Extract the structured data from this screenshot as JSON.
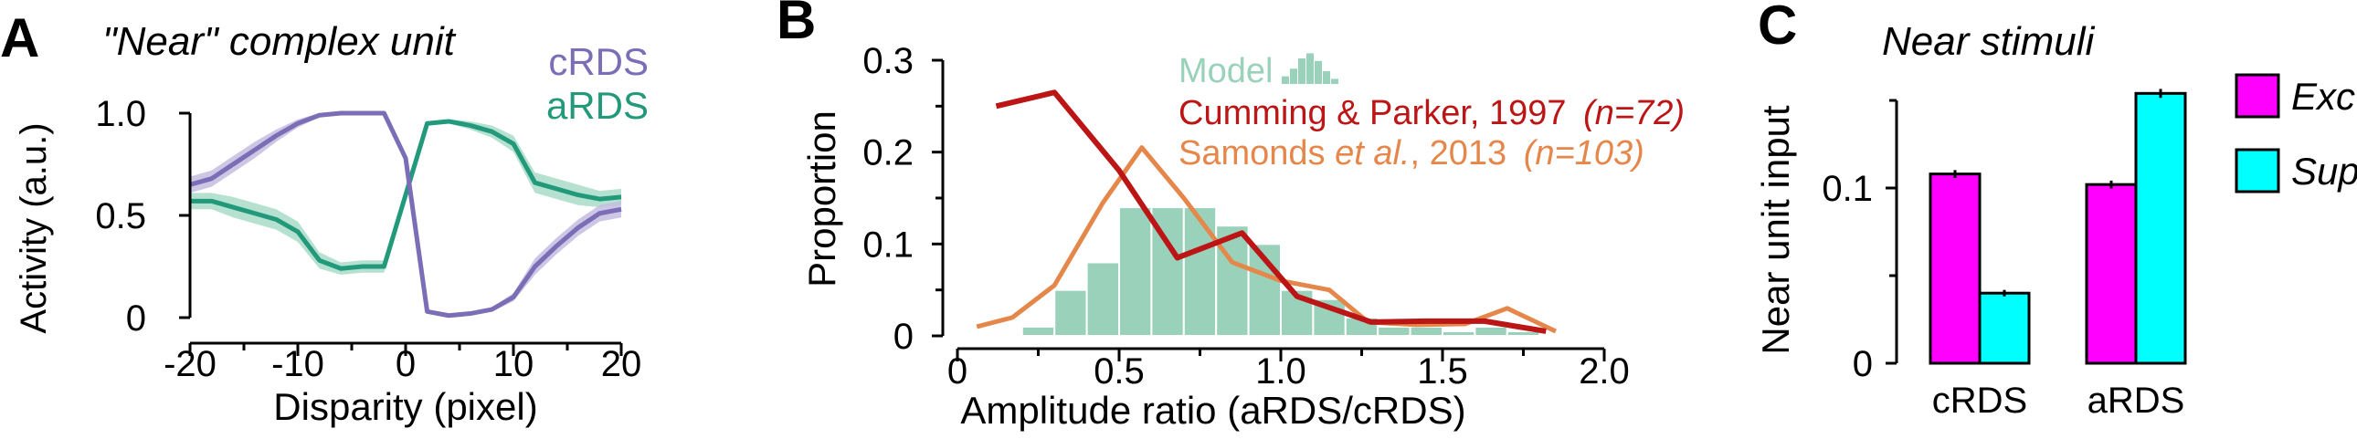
{
  "colors": {
    "crds": "#7b6db6",
    "crds_band": "#c4bde0",
    "ards": "#22997a",
    "ards_band": "#a9dcc8",
    "model_bar": "#99d1bb",
    "cumming": "#bb1515",
    "samonds": "#e5874a",
    "exc": "#ff00ff",
    "sup": "#00ffff"
  },
  "chart_data": [
    {
      "type": "line",
      "panel": "A",
      "title": "\"Near\" complex unit",
      "xlabel": "Disparity (pixel)",
      "ylabel": "Activity (a.u.)",
      "xlim": [
        -20,
        20
      ],
      "ylim": [
        0,
        1
      ],
      "xticks": [
        "-20",
        "-10",
        "0",
        "10",
        "20"
      ],
      "yticks": [
        "0",
        "0.5",
        "1.0"
      ],
      "legend_placement": "top-right",
      "series": [
        {
          "name": "cRDS",
          "x": [
            -20,
            -18,
            -16,
            -14,
            -12,
            -10,
            -8,
            -6,
            -4,
            -2,
            0,
            2,
            4,
            6,
            8,
            10,
            12,
            14,
            16,
            18,
            20
          ],
          "y": [
            0.65,
            0.68,
            0.75,
            0.82,
            0.89,
            0.95,
            0.99,
            1.0,
            1.0,
            1.0,
            0.78,
            0.03,
            0.01,
            0.02,
            0.04,
            0.1,
            0.25,
            0.35,
            0.44,
            0.51,
            0.53
          ],
          "band": [
            0.04,
            0.04,
            0.04,
            0.04,
            0.03,
            0.02,
            0.01,
            0.0,
            0.0,
            0.0,
            0.01,
            0.01,
            0.0,
            0.0,
            0.01,
            0.02,
            0.04,
            0.04,
            0.04,
            0.04,
            0.04
          ]
        },
        {
          "name": "aRDS",
          "x": [
            -20,
            -18,
            -16,
            -14,
            -12,
            -10,
            -8,
            -6,
            -4,
            -2,
            0,
            2,
            4,
            6,
            8,
            10,
            12,
            14,
            16,
            18,
            20
          ],
          "y": [
            0.57,
            0.57,
            0.54,
            0.51,
            0.48,
            0.42,
            0.28,
            0.24,
            0.25,
            0.25,
            0.6,
            0.95,
            0.96,
            0.94,
            0.91,
            0.85,
            0.66,
            0.63,
            0.6,
            0.58,
            0.59
          ],
          "band": [
            0.04,
            0.04,
            0.05,
            0.05,
            0.05,
            0.05,
            0.04,
            0.03,
            0.03,
            0.03,
            0.03,
            0.01,
            0.01,
            0.02,
            0.03,
            0.04,
            0.05,
            0.05,
            0.05,
            0.04,
            0.04
          ]
        }
      ]
    },
    {
      "type": "bar",
      "panel": "B",
      "xlabel": "Amplitude ratio (aRDS/cRDS)",
      "ylabel": "Proportion",
      "xlim": [
        0,
        2.0
      ],
      "ylim": [
        0,
        0.3
      ],
      "xticks": [
        "0",
        "0.5",
        "1.0",
        "1.5",
        "2.0"
      ],
      "yticks": [
        "0",
        "0.1",
        "0.2",
        "0.3"
      ],
      "legend_placement": "top",
      "histogram": {
        "name": "Model",
        "bin_width": 0.1,
        "bin_starts": [
          0.2,
          0.3,
          0.4,
          0.5,
          0.6,
          0.7,
          0.8,
          0.9,
          1.0,
          1.1,
          1.2,
          1.3,
          1.4,
          1.5,
          1.6,
          1.7
        ],
        "values": [
          0.01,
          0.05,
          0.08,
          0.14,
          0.14,
          0.14,
          0.12,
          0.1,
          0.05,
          0.04,
          0.02,
          0.01,
          0.01,
          0.005,
          0.01,
          0.005
        ]
      },
      "series": [
        {
          "name": "Cumming & Parker, 1997",
          "n_label": "(n=72)",
          "x": [
            0.12,
            0.3,
            0.5,
            0.68,
            0.88,
            1.05,
            1.28,
            1.45,
            1.63,
            1.82
          ],
          "y": [
            0.25,
            0.265,
            0.18,
            0.085,
            0.112,
            0.043,
            0.015,
            0.016,
            0.016,
            0.005
          ]
        },
        {
          "name": "Samonds et al., 2013",
          "name_prefix": "Samonds ",
          "name_italic": "et al.",
          "name_suffix": ", 2013",
          "n_label": "(n=103)",
          "x": [
            0.06,
            0.17,
            0.3,
            0.45,
            0.57,
            0.7,
            0.85,
            1.0,
            1.15,
            1.27,
            1.42,
            1.57,
            1.7,
            1.85
          ],
          "y": [
            0.01,
            0.02,
            0.055,
            0.145,
            0.205,
            0.15,
            0.08,
            0.06,
            0.05,
            0.015,
            0.012,
            0.013,
            0.03,
            0.005
          ]
        }
      ]
    },
    {
      "type": "bar",
      "panel": "C",
      "title": "Near stimuli",
      "ylabel": "Near unit input",
      "ylim": [
        0,
        0.15
      ],
      "yticks": [
        "0",
        "0.1"
      ],
      "categories": [
        "cRDS",
        "aRDS"
      ],
      "legend_placement": "right",
      "series": [
        {
          "name": "Exc",
          "values": [
            0.108,
            0.102
          ],
          "errors": [
            0.0012,
            0.0012
          ]
        },
        {
          "name": "Sup",
          "values": [
            0.04,
            0.154
          ],
          "errors": [
            0.0008,
            0.0015
          ]
        }
      ]
    }
  ]
}
